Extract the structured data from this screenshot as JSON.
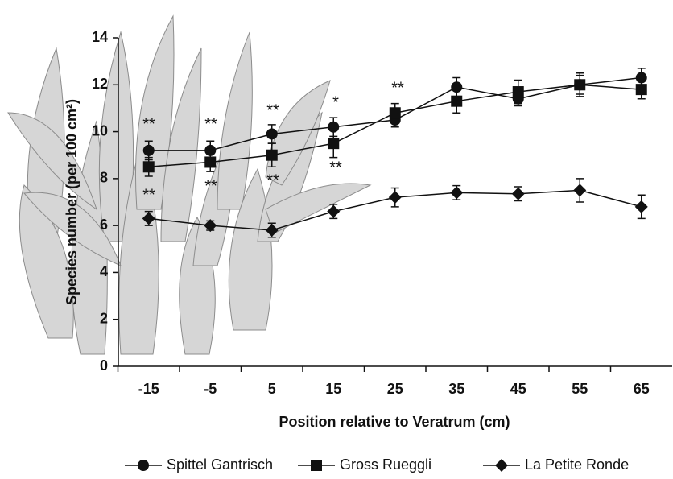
{
  "chart_data": {
    "type": "line",
    "y_label": "Species number (per 100 cm²)",
    "x_label": "Position relative to Veratrum (cm)",
    "categories": [
      "-15",
      "-5",
      "5",
      "15",
      "25",
      "35",
      "45",
      "55",
      "65"
    ],
    "ylim": [
      0,
      14
    ],
    "yticks": [
      0,
      2,
      4,
      6,
      8,
      10,
      12,
      14
    ],
    "series": [
      {
        "name": "Spittel Gantrisch",
        "marker": "circle",
        "color": "#111111",
        "values": [
          9.2,
          9.2,
          9.9,
          10.2,
          10.5,
          11.9,
          11.4,
          12.0,
          12.3
        ],
        "errors": [
          0.4,
          0.4,
          0.4,
          0.4,
          0.3,
          0.4,
          0.3,
          0.4,
          0.4
        ]
      },
      {
        "name": "Gross Rueggli",
        "marker": "square",
        "color": "#111111",
        "values": [
          8.5,
          8.7,
          9.0,
          9.5,
          10.8,
          11.3,
          11.7,
          12.0,
          11.8
        ],
        "errors": [
          0.4,
          0.4,
          0.5,
          0.6,
          0.4,
          0.5,
          0.5,
          0.5,
          0.4
        ]
      },
      {
        "name": "La Petite Ronde",
        "marker": "diamond",
        "color": "#111111",
        "values": [
          6.3,
          6.0,
          5.8,
          6.6,
          7.2,
          7.4,
          7.35,
          7.5,
          6.8
        ],
        "errors": [
          0.3,
          0.2,
          0.3,
          0.3,
          0.4,
          0.3,
          0.3,
          0.5,
          0.5
        ]
      }
    ],
    "annotations": [
      "**",
      "**",
      "**",
      "*",
      "**",
      "**",
      "**",
      "**",
      "**"
    ]
  }
}
